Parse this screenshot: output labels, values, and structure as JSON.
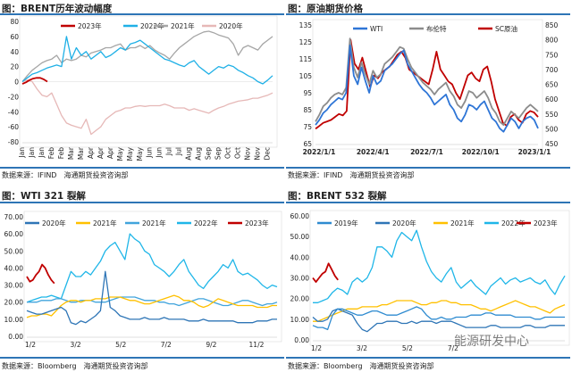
{
  "source_ifind": "数据来源：IFIND　海通期货投资咨询部",
  "source_bloomberg": "数据来源：Bloomberg　海通期货投资咨询部",
  "watermark": "能源研发中心",
  "chart_data": [
    {
      "title": "图：BRENT历年波动幅度",
      "type": "line",
      "ylim": [
        -80,
        80
      ],
      "yticks": [
        "80",
        "60",
        "40",
        "20",
        "0",
        "-20",
        "-40",
        "-60",
        "-80"
      ],
      "xticks": [
        "Jan",
        "Jan",
        "Jan",
        "Feb",
        "Feb",
        "Mar",
        "Mar",
        "Apr",
        "Apr",
        "Apr",
        "May",
        "May",
        "May",
        "Jun",
        "Jun",
        "Jul",
        "Jul",
        "Aug",
        "Aug",
        "Sep",
        "Sep",
        "Oct",
        "Oct",
        "Nov",
        "Nov",
        "Dec"
      ],
      "legend": "top",
      "series": [
        {
          "name": "2023年",
          "color": "#c00000",
          "values": [
            -3,
            -1,
            2,
            4,
            5,
            5,
            3,
            0
          ],
          "span": 0.1
        },
        {
          "name": "2022年",
          "color": "#1fb0e6",
          "values": [
            0,
            5,
            10,
            12,
            15,
            18,
            20,
            22,
            20,
            60,
            30,
            45,
            35,
            40,
            30,
            35,
            40,
            32,
            35,
            40,
            45,
            42,
            50,
            52,
            55,
            50,
            45,
            40,
            35,
            30,
            28,
            25,
            22,
            20,
            25,
            28,
            20,
            15,
            10,
            15,
            20,
            18,
            22,
            20,
            15,
            12,
            8,
            5,
            0,
            -3,
            2,
            8
          ]
        },
        {
          "name": "2021年",
          "color": "#a6a6a6",
          "values": [
            0,
            8,
            15,
            20,
            25,
            28,
            30,
            35,
            25,
            30,
            28,
            30,
            35,
            33,
            38,
            40,
            42,
            45,
            45,
            48,
            50,
            42,
            45,
            45,
            48,
            44,
            48,
            42,
            38,
            35,
            30,
            38,
            45,
            50,
            55,
            60,
            63,
            66,
            67,
            65,
            62,
            60,
            58,
            50,
            35,
            45,
            48,
            45,
            42,
            50,
            55,
            60
          ]
        },
        {
          "name": "2020年",
          "color": "#e6b8b7",
          "values": [
            0,
            2,
            0,
            -10,
            -18,
            -20,
            -15,
            -30,
            -45,
            -55,
            -58,
            -60,
            -62,
            -50,
            -70,
            -65,
            -60,
            -50,
            -45,
            -40,
            -38,
            -35,
            -35,
            -33,
            -32,
            -33,
            -32,
            -32,
            -32,
            -30,
            -32,
            -35,
            -35,
            -35,
            -38,
            -36,
            -38,
            -40,
            -42,
            -38,
            -35,
            -33,
            -30,
            -28,
            -26,
            -25,
            -24,
            -22,
            -22,
            -20,
            -18,
            -15
          ]
        }
      ]
    },
    {
      "title": "图：原油期货价格",
      "type": "line",
      "ylim": [
        65,
        135
      ],
      "y2lim": [
        450,
        850
      ],
      "yticks": [
        "135",
        "125",
        "115",
        "105",
        "95",
        "85",
        "75",
        "65"
      ],
      "y2ticks": [
        "850",
        "800",
        "750",
        "700",
        "650",
        "600",
        "550",
        "500",
        "450"
      ],
      "xticks": [
        "2022/1/1",
        "2022/4/1",
        "2022/7/1",
        "2022/10/1",
        "2023/1/1"
      ],
      "legend": "top",
      "series": [
        {
          "name": "WTI",
          "color": "#2e75d6",
          "axis": "left",
          "values": [
            76,
            79,
            83,
            85,
            88,
            90,
            92,
            91,
            95,
            123,
            105,
            100,
            110,
            102,
            95,
            105,
            100,
            102,
            108,
            110,
            112,
            115,
            118,
            120,
            112,
            108,
            104,
            100,
            97,
            95,
            92,
            88,
            90,
            92,
            94,
            88,
            85,
            80,
            78,
            82,
            88,
            87,
            85,
            88,
            90,
            85,
            80,
            78,
            74,
            72,
            76,
            80,
            78,
            74,
            78,
            80,
            81,
            79,
            74
          ]
        },
        {
          "name": "布伦特",
          "color": "#8c8c8c",
          "axis": "left",
          "values": [
            78,
            82,
            87,
            89,
            92,
            94,
            95,
            94,
            98,
            127,
            110,
            104,
            113,
            106,
            100,
            108,
            104,
            106,
            112,
            114,
            116,
            119,
            122,
            121,
            115,
            110,
            107,
            104,
            101,
            99,
            97,
            94,
            97,
            99,
            101,
            96,
            93,
            88,
            86,
            90,
            96,
            95,
            92,
            94,
            96,
            92,
            86,
            83,
            78,
            76,
            80,
            84,
            82,
            80,
            83,
            86,
            88,
            86,
            84
          ]
        },
        {
          "name": "SC原油",
          "color": "#c00000",
          "axis": "right",
          "values": [
            500,
            510,
            520,
            525,
            530,
            540,
            550,
            545,
            560,
            800,
            720,
            700,
            740,
            690,
            640,
            680,
            670,
            690,
            700,
            710,
            730,
            750,
            760,
            740,
            700,
            690,
            680,
            670,
            660,
            650,
            700,
            760,
            700,
            680,
            660,
            650,
            620,
            600,
            640,
            680,
            690,
            670,
            660,
            700,
            710,
            660,
            600,
            560,
            520,
            510,
            540,
            550,
            530,
            520,
            550,
            560,
            555,
            540
          ]
        }
      ]
    },
    {
      "title": "图：WTI 321 裂解",
      "type": "line",
      "ylim": [
        0,
        70
      ],
      "yticks": [
        "70.00",
        "60.00",
        "50.00",
        "40.00",
        "30.00",
        "20.00",
        "10.00",
        "0.00"
      ],
      "xticks": [
        "1/2",
        "3/2",
        "5/2",
        "7/2",
        "9/2",
        "11/2"
      ],
      "legend": "top",
      "series": [
        {
          "name": "2020年",
          "color": "#2e75b6",
          "values": [
            15,
            14,
            13,
            13,
            14,
            15,
            16,
            17,
            15,
            8,
            7,
            9,
            8,
            10,
            12,
            15,
            38,
            17,
            15,
            12,
            11,
            10,
            10,
            10,
            11,
            10,
            10,
            10,
            11,
            10,
            10,
            10,
            10,
            9,
            9,
            9,
            10,
            9,
            9,
            9,
            9,
            9,
            9,
            8,
            8,
            8,
            8,
            9,
            9,
            9,
            10,
            10
          ]
        },
        {
          "name": "2021年",
          "color": "#ffc000",
          "values": [
            11,
            12,
            12,
            13,
            13,
            12,
            15,
            18,
            20,
            21,
            21,
            20,
            21,
            21,
            22,
            22,
            22,
            23,
            23,
            23,
            22,
            21,
            21,
            20,
            19,
            19,
            20,
            21,
            22,
            23,
            24,
            23,
            21,
            21,
            20,
            18,
            17,
            18,
            20,
            22,
            21,
            20,
            19,
            18,
            18,
            18,
            18,
            17,
            17,
            17,
            18,
            18
          ]
        },
        {
          "name": "2021年",
          "color": "#41a4dc",
          "values": [
            20,
            20,
            20,
            21,
            21,
            21,
            22,
            22,
            21,
            20,
            20,
            21,
            21,
            21,
            20,
            20,
            20,
            21,
            22,
            23,
            23,
            23,
            23,
            22,
            21,
            21,
            21,
            20,
            20,
            19,
            19,
            18,
            19,
            20,
            21,
            22,
            22,
            21,
            20,
            19,
            18,
            18,
            19,
            20,
            21,
            21,
            20,
            19,
            18,
            19,
            19,
            20
          ]
        },
        {
          "name": "2022年",
          "color": "#1fb6e8",
          "values": [
            20,
            21,
            22,
            23,
            23,
            24,
            23,
            22,
            30,
            38,
            35,
            35,
            38,
            36,
            40,
            44,
            50,
            53,
            55,
            50,
            45,
            60,
            57,
            55,
            50,
            48,
            42,
            40,
            38,
            35,
            38,
            42,
            45,
            38,
            34,
            30,
            28,
            32,
            35,
            38,
            42,
            40,
            45,
            38,
            36,
            37,
            35,
            33,
            30,
            28,
            30,
            29
          ]
        },
        {
          "name": "2023年",
          "color": "#c00000",
          "values": [
            35,
            32,
            33,
            36,
            38,
            42,
            40,
            36,
            33,
            31
          ],
          "span": 0.11
        }
      ]
    },
    {
      "title": "图：BRENT 532 裂解",
      "type": "line",
      "ylim": [
        0,
        60
      ],
      "yticks": [
        "60.00",
        "50.00",
        "40.00",
        "30.00",
        "20.00",
        "10.00",
        "0.00"
      ],
      "xticks": [
        "1/2",
        "3/2",
        "5/2",
        "7/2"
      ],
      "legend": "top",
      "series": [
        {
          "name": "2019年",
          "color": "#2e8bd0",
          "values": [
            7,
            6,
            6,
            5,
            12,
            15,
            15,
            14,
            13,
            12,
            12,
            13,
            14,
            14,
            13,
            12,
            12,
            12,
            13,
            14,
            15,
            16,
            15,
            12,
            10,
            10,
            11,
            10,
            10,
            11,
            11,
            11,
            12,
            12,
            12,
            13,
            13,
            12,
            12,
            12,
            12,
            11,
            11,
            11,
            11,
            10,
            10,
            11,
            11,
            11,
            11,
            11
          ]
        },
        {
          "name": "2020年",
          "color": "#2e75b6",
          "values": [
            11,
            9,
            9,
            10,
            14,
            15,
            14,
            13,
            12,
            8,
            5,
            4,
            6,
            8,
            8,
            9,
            9,
            9,
            8,
            8,
            9,
            8,
            9,
            9,
            9,
            8,
            9,
            9,
            9,
            8,
            7,
            6,
            6,
            6,
            6,
            6,
            7,
            7,
            6,
            6,
            6,
            6,
            6,
            7,
            7,
            6,
            6,
            6,
            7,
            7,
            7,
            7
          ]
        },
        {
          "name": "2021年",
          "color": "#ffc000",
          "values": [
            9,
            9,
            10,
            11,
            12,
            13,
            14,
            15,
            15,
            15,
            16,
            16,
            16,
            16,
            17,
            17,
            18,
            19,
            19,
            19,
            19,
            18,
            17,
            17,
            18,
            18,
            19,
            19,
            18,
            18,
            17,
            17,
            17,
            16,
            15,
            15,
            14,
            15,
            16,
            17,
            18,
            19,
            18,
            17,
            16,
            16,
            15,
            14,
            13,
            15,
            16,
            17
          ]
        },
        {
          "name": "2022年",
          "color": "#1fb6e8",
          "values": [
            18,
            18,
            19,
            20,
            23,
            25,
            24,
            22,
            28,
            30,
            28,
            30,
            35,
            45,
            45,
            43,
            40,
            48,
            52,
            50,
            48,
            53,
            45,
            38,
            33,
            30,
            28,
            32,
            35,
            28,
            25,
            27,
            29,
            26,
            24,
            22,
            26,
            28,
            30,
            27,
            29,
            30,
            28,
            29,
            30,
            28,
            27,
            29,
            25,
            22,
            27,
            31
          ]
        },
        {
          "name": "2023年",
          "color": "#c00000",
          "values": [
            30,
            28,
            30,
            32,
            33,
            37,
            34,
            31,
            29
          ],
          "span": 0.1
        }
      ]
    }
  ]
}
